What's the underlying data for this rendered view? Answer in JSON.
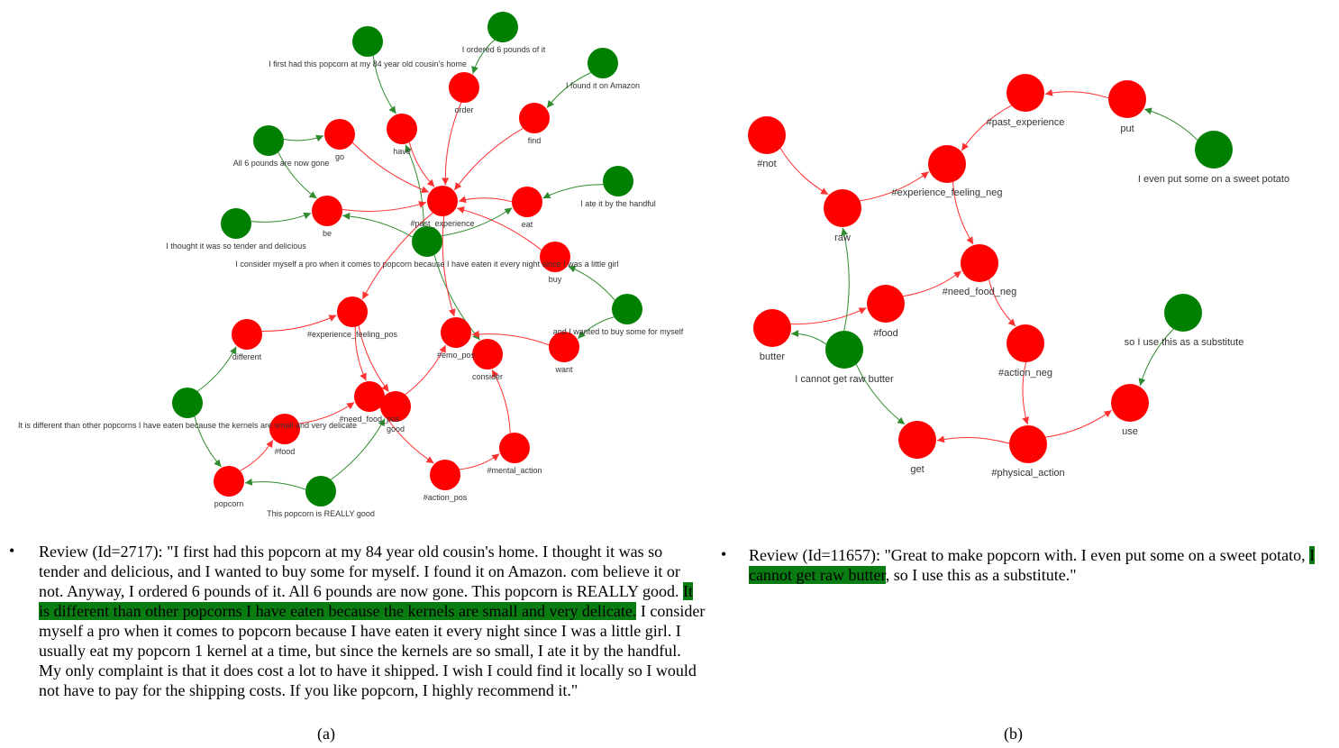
{
  "colors": {
    "red": "#ff0000",
    "green": "#008000",
    "red_edge": "#ff3030",
    "green_edge": "#2e8b2e",
    "highlight": "#0a7d12"
  },
  "graph_a": {
    "nodes": [
      {
        "id": "a_g_cousin",
        "label": "I first had this popcorn at my 84 year old cousin's home",
        "color": "green"
      },
      {
        "id": "a_g_ordered",
        "label": "I ordered 6 pounds of it",
        "color": "green"
      },
      {
        "id": "a_g_amazon",
        "label": "I found it on Amazon",
        "color": "green"
      },
      {
        "id": "a_g_gone",
        "label": "All 6 pounds are now gone",
        "color": "green"
      },
      {
        "id": "a_g_handful",
        "label": "I ate it by the handful",
        "color": "green"
      },
      {
        "id": "a_g_tender",
        "label": "I thought it was so tender and delicious",
        "color": "green"
      },
      {
        "id": "a_g_pro",
        "label": "I consider myself a pro when it comes to popcorn because I have eaten it every night since I was a little girl",
        "color": "green"
      },
      {
        "id": "a_g_wanted",
        "label": "and I wanted to buy some for myself",
        "color": "green"
      },
      {
        "id": "a_g_different",
        "label": "It is different than other popcorns I have eaten because the kernels are small and very delicate",
        "color": "green"
      },
      {
        "id": "a_g_really",
        "label": "This popcorn is REALLY good",
        "color": "green"
      },
      {
        "id": "a_order",
        "label": "order",
        "color": "red"
      },
      {
        "id": "a_find",
        "label": "find",
        "color": "red"
      },
      {
        "id": "a_go",
        "label": "go",
        "color": "red"
      },
      {
        "id": "a_have",
        "label": "have",
        "color": "red"
      },
      {
        "id": "a_past",
        "label": "#past_experience",
        "color": "red"
      },
      {
        "id": "a_eat",
        "label": "eat",
        "color": "red"
      },
      {
        "id": "a_be",
        "label": "be",
        "color": "red"
      },
      {
        "id": "a_buy",
        "label": "buy",
        "color": "red"
      },
      {
        "id": "a_exp_pos",
        "label": "#experience_feeling_pos",
        "color": "red"
      },
      {
        "id": "a_different",
        "label": "different",
        "color": "red"
      },
      {
        "id": "a_emo_pos",
        "label": "#emo_pos",
        "color": "red"
      },
      {
        "id": "a_consider",
        "label": "consider",
        "color": "red"
      },
      {
        "id": "a_want",
        "label": "want",
        "color": "red"
      },
      {
        "id": "a_need_pos",
        "label": "#need_food_pos",
        "color": "red"
      },
      {
        "id": "a_good",
        "label": "good",
        "color": "red"
      },
      {
        "id": "a_food",
        "label": "#food",
        "color": "red"
      },
      {
        "id": "a_mental",
        "label": "#mental_action",
        "color": "red"
      },
      {
        "id": "a_action_pos",
        "label": "#action_pos",
        "color": "red"
      },
      {
        "id": "a_popcorn",
        "label": "popcorn",
        "color": "red"
      }
    ],
    "edges": [
      {
        "from": "a_g_cousin",
        "to": "a_have"
      },
      {
        "from": "a_g_ordered",
        "to": "a_order"
      },
      {
        "from": "a_g_amazon",
        "to": "a_find"
      },
      {
        "from": "a_g_gone",
        "to": "a_go"
      },
      {
        "from": "a_g_gone",
        "to": "a_be"
      },
      {
        "from": "a_g_tender",
        "to": "a_be"
      },
      {
        "from": "a_g_handful",
        "to": "a_eat"
      },
      {
        "from": "a_g_pro",
        "to": "a_be"
      },
      {
        "from": "a_g_pro",
        "to": "a_have"
      },
      {
        "from": "a_g_pro",
        "to": "a_eat"
      },
      {
        "from": "a_g_pro",
        "to": "a_consider"
      },
      {
        "from": "a_g_wanted",
        "to": "a_buy"
      },
      {
        "from": "a_g_wanted",
        "to": "a_want"
      },
      {
        "from": "a_g_different",
        "to": "a_different"
      },
      {
        "from": "a_g_different",
        "to": "a_popcorn"
      },
      {
        "from": "a_g_really",
        "to": "a_popcorn"
      },
      {
        "from": "a_g_really",
        "to": "a_good"
      },
      {
        "from": "a_order",
        "to": "a_past"
      },
      {
        "from": "a_find",
        "to": "a_past"
      },
      {
        "from": "a_go",
        "to": "a_past"
      },
      {
        "from": "a_have",
        "to": "a_past"
      },
      {
        "from": "a_eat",
        "to": "a_past"
      },
      {
        "from": "a_be",
        "to": "a_past"
      },
      {
        "from": "a_buy",
        "to": "a_past"
      },
      {
        "from": "a_past",
        "to": "a_exp_pos"
      },
      {
        "from": "a_past",
        "to": "a_emo_pos"
      },
      {
        "from": "a_different",
        "to": "a_exp_pos"
      },
      {
        "from": "a_exp_pos",
        "to": "a_need_pos"
      },
      {
        "from": "a_exp_pos",
        "to": "a_good"
      },
      {
        "from": "a_want",
        "to": "a_emo_pos"
      },
      {
        "from": "a_good",
        "to": "a_emo_pos"
      },
      {
        "from": "a_food",
        "to": "a_need_pos"
      },
      {
        "from": "a_popcorn",
        "to": "a_food"
      },
      {
        "from": "a_need_pos",
        "to": "a_action_pos"
      },
      {
        "from": "a_action_pos",
        "to": "a_mental"
      },
      {
        "from": "a_mental",
        "to": "a_consider"
      }
    ]
  },
  "graph_b": {
    "nodes": [
      {
        "id": "b_not",
        "label": "#not",
        "color": "red"
      },
      {
        "id": "b_raw",
        "label": "raw",
        "color": "red"
      },
      {
        "id": "b_exp_neg",
        "label": "#experience_feeling_neg",
        "color": "red"
      },
      {
        "id": "b_past",
        "label": "#past_experience",
        "color": "red"
      },
      {
        "id": "b_put",
        "label": "put",
        "color": "red"
      },
      {
        "id": "b_g_sweet",
        "label": "I even put some on a sweet potato",
        "color": "green"
      },
      {
        "id": "b_need_neg",
        "label": "#need_food_neg",
        "color": "red"
      },
      {
        "id": "b_food",
        "label": "#food",
        "color": "red"
      },
      {
        "id": "b_butter",
        "label": "butter",
        "color": "red"
      },
      {
        "id": "b_g_cannot",
        "label": "I cannot get raw butter",
        "color": "green"
      },
      {
        "id": "b_action_neg",
        "label": "#action_neg",
        "color": "red"
      },
      {
        "id": "b_g_substitute",
        "label": "so I use this as a substitute",
        "color": "green"
      },
      {
        "id": "b_use",
        "label": "use",
        "color": "red"
      },
      {
        "id": "b_get",
        "label": "get",
        "color": "red"
      },
      {
        "id": "b_physical",
        "label": "#physical_action",
        "color": "red"
      }
    ],
    "edges": [
      {
        "from": "b_not",
        "to": "b_raw"
      },
      {
        "from": "b_raw",
        "to": "b_exp_neg"
      },
      {
        "from": "b_past",
        "to": "b_exp_neg"
      },
      {
        "from": "b_put",
        "to": "b_past"
      },
      {
        "from": "b_g_sweet",
        "to": "b_put"
      },
      {
        "from": "b_exp_neg",
        "to": "b_need_neg"
      },
      {
        "from": "b_butter",
        "to": "b_food"
      },
      {
        "from": "b_food",
        "to": "b_need_neg"
      },
      {
        "from": "b_need_neg",
        "to": "b_action_neg"
      },
      {
        "from": "b_action_neg",
        "to": "b_physical"
      },
      {
        "from": "b_physical",
        "to": "b_get"
      },
      {
        "from": "b_physical",
        "to": "b_use"
      },
      {
        "from": "b_g_substitute",
        "to": "b_use"
      },
      {
        "from": "b_g_cannot",
        "to": "b_raw"
      },
      {
        "from": "b_g_cannot",
        "to": "b_butter"
      },
      {
        "from": "b_g_cannot",
        "to": "b_get"
      }
    ]
  },
  "review_a": {
    "bullet": "•",
    "before": "Review (Id=2717): \"I first had this popcorn at my 84 year old cousin's home. I thought it was so tender and delicious, and I wanted to buy some for myself. I found it on Amazon. com believe it or not. Anyway, I ordered 6 pounds of it. All 6 pounds are now gone. This popcorn is REALLY good. ",
    "highlight": "It is different than other popcorns I have eaten because the kernels are small and very delicate.",
    "after": " I consider myself a pro when it comes to popcorn because I have eaten it every night since I was a little girl. I usually eat my popcorn 1 kernel at a time, but since the kernels are so small, I ate it by the handful. My only complaint is that it does cost a lot to have it shipped. I wish I could find it locally so I would not have to pay for the shipping costs. If you like popcorn, I highly recommend it.\""
  },
  "review_b": {
    "bullet": "•",
    "before": "Review (Id=11657):  \"Great to make popcorn with. I even put some on a sweet potato, ",
    "highlight": "I cannot get raw butter",
    "after": ", so I use this as a substitute.\""
  },
  "captions": {
    "a": "(a)",
    "b": "(b)"
  }
}
